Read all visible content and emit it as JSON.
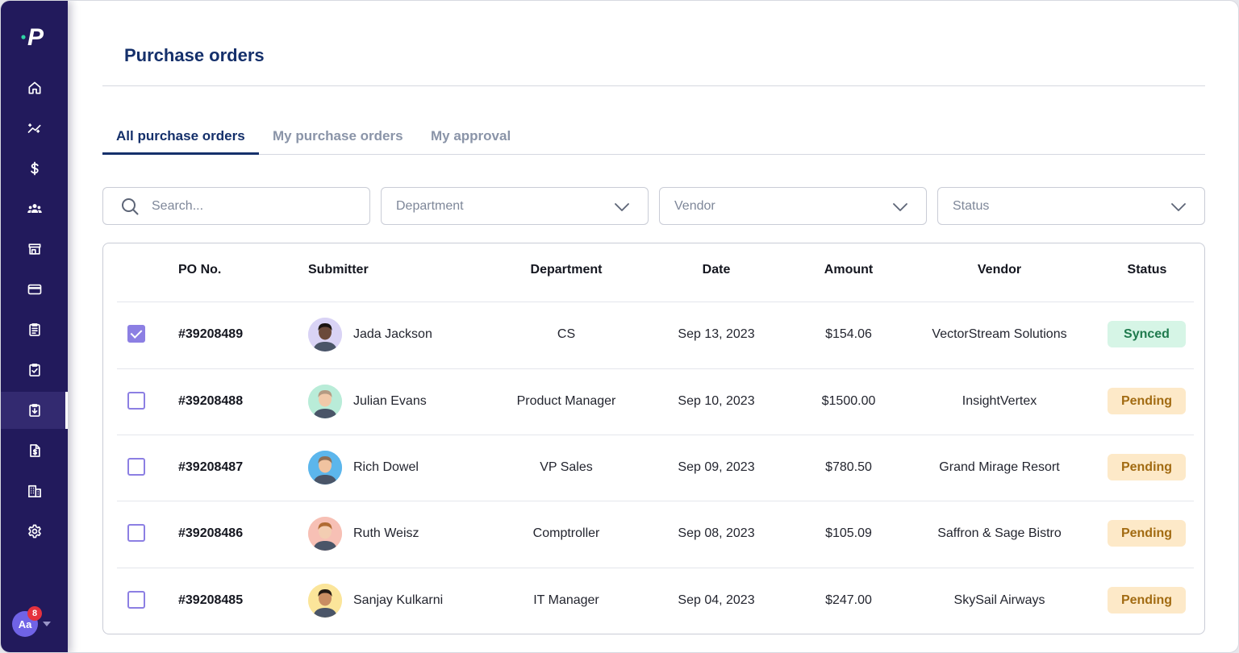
{
  "app": {
    "logo_letter": "P"
  },
  "page": {
    "title": "Purchase orders"
  },
  "sidebar": {
    "items": [
      {
        "icon": "home-icon"
      },
      {
        "icon": "analytics-icon"
      },
      {
        "icon": "dollar-icon"
      },
      {
        "icon": "team-icon"
      },
      {
        "icon": "store-icon"
      },
      {
        "icon": "credit-card-icon"
      },
      {
        "icon": "clipboard-list-icon"
      },
      {
        "icon": "clipboard-check-icon"
      },
      {
        "icon": "clipboard-download-icon"
      },
      {
        "icon": "invoice-icon"
      },
      {
        "icon": "building-icon"
      },
      {
        "icon": "gear-icon"
      }
    ],
    "active_index": 8,
    "user": {
      "initials": "Aa",
      "notifications": "8"
    }
  },
  "tabs": [
    {
      "label": "All purchase orders",
      "active": true
    },
    {
      "label": "My purchase orders",
      "active": false
    },
    {
      "label": "My approval",
      "active": false
    }
  ],
  "filters": {
    "search_placeholder": "Search...",
    "department_placeholder": "Department",
    "vendor_placeholder": "Vendor",
    "status_placeholder": "Status"
  },
  "table": {
    "headers": {
      "po": "PO No.",
      "submitter": "Submitter",
      "department": "Department",
      "date": "Date",
      "amount": "Amount",
      "vendor": "Vendor",
      "status": "Status"
    },
    "rows": [
      {
        "checked": true,
        "po": "#39208489",
        "submitter": "Jada Jackson",
        "department": "CS",
        "date": "Sep 13, 2023",
        "amount": "$154.06",
        "vendor": "VectorStream Solutions",
        "status": "Synced",
        "avatar_bg": "#d9d3f5"
      },
      {
        "checked": false,
        "po": "#39208488",
        "submitter": "Julian Evans",
        "department": "Product Manager",
        "date": "Sep 10, 2023",
        "amount": "$1500.00",
        "vendor": "InsightVertex",
        "status": "Pending",
        "avatar_bg": "#b9ecd8"
      },
      {
        "checked": false,
        "po": "#39208487",
        "submitter": "Rich Dowel",
        "department": "VP Sales",
        "date": "Sep 09, 2023",
        "amount": "$780.50",
        "vendor": "Grand Mirage Resort",
        "status": "Pending",
        "avatar_bg": "#5cb6ec"
      },
      {
        "checked": false,
        "po": "#39208486",
        "submitter": "Ruth Weisz",
        "department": "Comptroller",
        "date": "Sep 08, 2023",
        "amount": "$105.09",
        "vendor": "Saffron & Sage Bistro",
        "status": "Pending",
        "avatar_bg": "#f7c0b5"
      },
      {
        "checked": false,
        "po": "#39208485",
        "submitter": "Sanjay Kulkarni",
        "department": "IT Manager",
        "date": "Sep 04, 2023",
        "amount": "$247.00",
        "vendor": "SkySail Airways",
        "status": "Pending",
        "avatar_bg": "#fbe59a"
      }
    ]
  },
  "colors": {
    "sidebar_bg": "#221a5c",
    "title": "#15306b",
    "accent_checkbox": "#8c7fe3",
    "synced_bg": "#d6f5e6",
    "synced_text": "#1f7a4d",
    "pending_bg": "#fde9c8",
    "pending_text": "#a26b12"
  }
}
